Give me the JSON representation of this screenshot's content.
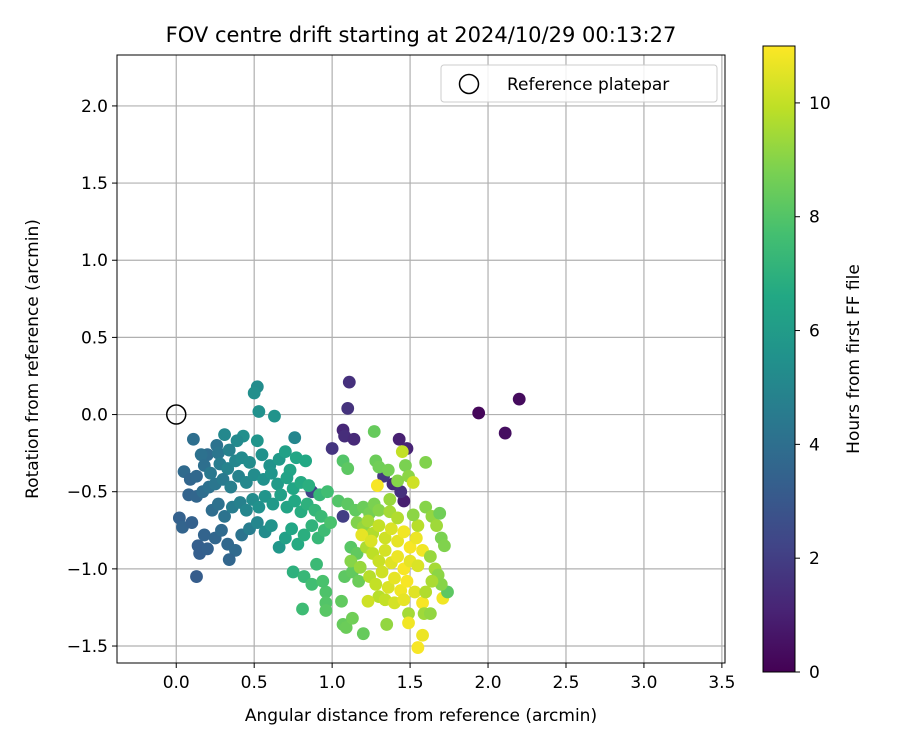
{
  "chart_data": {
    "type": "scatter",
    "title": "FOV centre drift starting at 2024/10/29 00:13:27",
    "xlabel": "Angular distance from reference (arcmin)",
    "ylabel": "Rotation from reference (arcmin)",
    "xlim": [
      -0.38,
      3.52
    ],
    "ylim": [
      -1.61,
      2.33
    ],
    "xticks": [
      "0.0",
      "0.5",
      "1.0",
      "1.5",
      "2.0",
      "2.5",
      "3.0",
      "3.5"
    ],
    "yticks": [
      "−1.5",
      "−1.0",
      "−0.5",
      "0.0",
      "0.5",
      "1.0",
      "1.5",
      "2.0"
    ],
    "grid": true,
    "legend": {
      "placement": "top-right",
      "entries": [
        "Reference platepar"
      ]
    },
    "colorbar": {
      "label": "Hours from first FF file",
      "range": [
        0,
        11
      ],
      "ticks": [
        "0",
        "2",
        "4",
        "6",
        "8",
        "10"
      ],
      "colormap": "viridis"
    },
    "reference": {
      "x": 0.0,
      "y": 0.0,
      "name": "Reference platepar"
    },
    "points": [
      [
        1.94,
        0.01,
        0.2
      ],
      [
        2.2,
        0.1,
        0.3
      ],
      [
        2.11,
        -0.12,
        0.4
      ],
      [
        1.11,
        0.21,
        1.5
      ],
      [
        1.1,
        0.04,
        1.6
      ],
      [
        1.07,
        -0.1,
        1.2
      ],
      [
        1.08,
        -0.14,
        1.4
      ],
      [
        1.14,
        -0.16,
        1.3
      ],
      [
        1.0,
        -0.22,
        1.7
      ],
      [
        1.43,
        -0.16,
        1.0
      ],
      [
        1.48,
        -0.22,
        1.1
      ],
      [
        1.39,
        -0.45,
        1.3
      ],
      [
        1.33,
        -0.4,
        1.8
      ],
      [
        1.46,
        -0.56,
        0.9
      ],
      [
        1.07,
        -0.66,
        2.0
      ],
      [
        1.44,
        -0.5,
        1.5
      ],
      [
        0.87,
        -0.5,
        2.2
      ],
      [
        0.52,
        0.18,
        5.3
      ],
      [
        0.5,
        0.14,
        5.4
      ],
      [
        0.53,
        0.02,
        5.5
      ],
      [
        0.63,
        -0.01,
        5.6
      ],
      [
        0.43,
        -0.14,
        5.4
      ],
      [
        0.39,
        -0.17,
        5.2
      ],
      [
        0.31,
        -0.13,
        5.1
      ],
      [
        0.52,
        -0.17,
        5.7
      ],
      [
        0.76,
        -0.15,
        5.0
      ],
      [
        0.11,
        -0.16,
        4.0
      ],
      [
        0.2,
        -0.26,
        3.9
      ],
      [
        0.16,
        -0.26,
        4.1
      ],
      [
        0.26,
        -0.2,
        4.2
      ],
      [
        0.27,
        -0.25,
        4.3
      ],
      [
        0.34,
        -0.23,
        4.8
      ],
      [
        0.05,
        -0.37,
        3.8
      ],
      [
        0.09,
        -0.42,
        3.6
      ],
      [
        0.13,
        -0.4,
        3.7
      ],
      [
        0.18,
        -0.33,
        4.0
      ],
      [
        0.22,
        -0.38,
        4.4
      ],
      [
        0.28,
        -0.32,
        4.6
      ],
      [
        0.33,
        -0.35,
        4.9
      ],
      [
        0.38,
        -0.3,
        5.0
      ],
      [
        0.42,
        -0.28,
        5.2
      ],
      [
        0.47,
        -0.31,
        5.3
      ],
      [
        0.55,
        -0.26,
        5.5
      ],
      [
        0.6,
        -0.33,
        5.6
      ],
      [
        0.66,
        -0.29,
        5.9
      ],
      [
        0.7,
        -0.24,
        6.2
      ],
      [
        0.73,
        -0.36,
        6.4
      ],
      [
        0.77,
        -0.28,
        6.5
      ],
      [
        0.83,
        -0.3,
        6.6
      ],
      [
        0.08,
        -0.52,
        3.5
      ],
      [
        0.13,
        -0.53,
        3.6
      ],
      [
        0.17,
        -0.5,
        3.9
      ],
      [
        0.21,
        -0.47,
        4.1
      ],
      [
        0.25,
        -0.45,
        4.3
      ],
      [
        0.3,
        -0.42,
        4.5
      ],
      [
        0.35,
        -0.47,
        4.7
      ],
      [
        0.4,
        -0.4,
        4.9
      ],
      [
        0.45,
        -0.44,
        5.1
      ],
      [
        0.5,
        -0.39,
        5.3
      ],
      [
        0.56,
        -0.42,
        5.5
      ],
      [
        0.61,
        -0.38,
        5.7
      ],
      [
        0.65,
        -0.45,
        6.0
      ],
      [
        0.71,
        -0.41,
        6.3
      ],
      [
        0.75,
        -0.48,
        6.5
      ],
      [
        0.8,
        -0.44,
        6.7
      ],
      [
        0.85,
        -0.46,
        6.9
      ],
      [
        0.92,
        -0.52,
        7.3
      ],
      [
        0.97,
        -0.5,
        7.6
      ],
      [
        0.02,
        -0.67,
        3.4
      ],
      [
        0.04,
        -0.73,
        3.5
      ],
      [
        0.1,
        -0.7,
        3.4
      ],
      [
        0.14,
        -0.85,
        3.3
      ],
      [
        0.18,
        -0.78,
        3.5
      ],
      [
        0.23,
        -0.62,
        3.9
      ],
      [
        0.27,
        -0.58,
        4.1
      ],
      [
        0.31,
        -0.66,
        4.2
      ],
      [
        0.36,
        -0.6,
        4.6
      ],
      [
        0.41,
        -0.57,
        4.8
      ],
      [
        0.45,
        -0.62,
        5.0
      ],
      [
        0.49,
        -0.55,
        5.3
      ],
      [
        0.53,
        -0.6,
        5.5
      ],
      [
        0.57,
        -0.53,
        5.7
      ],
      [
        0.62,
        -0.58,
        5.9
      ],
      [
        0.67,
        -0.52,
        6.2
      ],
      [
        0.71,
        -0.6,
        6.4
      ],
      [
        0.76,
        -0.56,
        6.6
      ],
      [
        0.8,
        -0.63,
        6.8
      ],
      [
        0.84,
        -0.58,
        7.0
      ],
      [
        0.89,
        -0.62,
        7.2
      ],
      [
        0.93,
        -0.66,
        7.4
      ],
      [
        0.13,
        -1.05,
        3.2
      ],
      [
        0.15,
        -0.9,
        3.3
      ],
      [
        0.2,
        -0.87,
        3.4
      ],
      [
        0.25,
        -0.8,
        3.6
      ],
      [
        0.29,
        -0.75,
        3.8
      ],
      [
        0.33,
        -0.84,
        3.7
      ],
      [
        0.38,
        -0.88,
        3.8
      ],
      [
        0.34,
        -0.94,
        3.6
      ],
      [
        0.42,
        -0.78,
        4.2
      ],
      [
        0.47,
        -0.74,
        4.6
      ],
      [
        0.52,
        -0.7,
        5.0
      ],
      [
        0.57,
        -0.76,
        5.3
      ],
      [
        0.61,
        -0.72,
        5.6
      ],
      [
        0.66,
        -0.86,
        5.8
      ],
      [
        0.7,
        -0.8,
        6.2
      ],
      [
        0.74,
        -0.74,
        6.5
      ],
      [
        0.78,
        -0.84,
        6.7
      ],
      [
        0.82,
        -0.78,
        6.9
      ],
      [
        0.87,
        -0.72,
        7.1
      ],
      [
        0.91,
        -0.8,
        7.3
      ],
      [
        0.95,
        -0.75,
        7.5
      ],
      [
        0.99,
        -0.7,
        7.8
      ],
      [
        0.75,
        -1.02,
        7.0
      ],
      [
        0.82,
        -1.05,
        7.3
      ],
      [
        0.87,
        -1.1,
        7.6
      ],
      [
        0.9,
        -0.97,
        7.4
      ],
      [
        0.96,
        -1.15,
        7.9
      ],
      [
        0.96,
        -1.22,
        8.0
      ],
      [
        0.96,
        -1.27,
        8.1
      ],
      [
        0.81,
        -1.26,
        7.5
      ],
      [
        0.94,
        -1.08,
        7.8
      ],
      [
        1.06,
        -1.21,
        8.3
      ],
      [
        1.07,
        -1.36,
        8.4
      ],
      [
        1.09,
        -1.38,
        8.5
      ],
      [
        1.13,
        -1.32,
        8.6
      ],
      [
        1.2,
        -1.42,
        8.4
      ],
      [
        1.08,
        -1.05,
        8.2
      ],
      [
        1.13,
        -1.02,
        8.3
      ],
      [
        1.17,
        -1.08,
        8.5
      ],
      [
        1.12,
        -0.86,
        8.1
      ],
      [
        1.16,
        -0.9,
        8.3
      ],
      [
        1.04,
        -0.56,
        8.0
      ],
      [
        1.1,
        -0.58,
        8.2
      ],
      [
        1.15,
        -0.62,
        8.3
      ],
      [
        1.2,
        -0.6,
        8.5
      ],
      [
        1.24,
        -0.64,
        8.7
      ],
      [
        1.27,
        -0.58,
        8.8
      ],
      [
        1.3,
        -0.62,
        9.0
      ],
      [
        1.07,
        -0.3,
        8.0
      ],
      [
        1.1,
        -0.35,
        8.2
      ],
      [
        1.27,
        -0.11,
        8.4
      ],
      [
        1.28,
        -0.3,
        8.5
      ],
      [
        1.3,
        -0.34,
        8.6
      ],
      [
        1.36,
        -0.36,
        8.7
      ],
      [
        1.42,
        -0.43,
        9.0
      ],
      [
        1.47,
        -0.33,
        8.8
      ],
      [
        1.49,
        -0.4,
        9.1
      ],
      [
        1.6,
        -0.31,
        8.9
      ],
      [
        1.45,
        -0.24,
        10.0
      ],
      [
        1.16,
        -0.7,
        8.9
      ],
      [
        1.2,
        -0.73,
        9.2
      ],
      [
        1.23,
        -0.69,
        9.5
      ],
      [
        1.26,
        -0.77,
        9.7
      ],
      [
        1.3,
        -0.72,
        10.0
      ],
      [
        1.34,
        -0.8,
        10.2
      ],
      [
        1.38,
        -0.74,
        10.4
      ],
      [
        1.42,
        -0.82,
        10.6
      ],
      [
        1.46,
        -0.76,
        10.8
      ],
      [
        1.5,
        -0.86,
        10.9
      ],
      [
        1.54,
        -0.8,
        10.7
      ],
      [
        1.58,
        -0.88,
        10.8
      ],
      [
        1.22,
        -0.86,
        9.6
      ],
      [
        1.26,
        -0.9,
        9.9
      ],
      [
        1.3,
        -0.95,
        10.1
      ],
      [
        1.34,
        -0.88,
        10.3
      ],
      [
        1.38,
        -0.96,
        10.5
      ],
      [
        1.42,
        -0.92,
        10.7
      ],
      [
        1.46,
        -1.0,
        10.9
      ],
      [
        1.5,
        -0.95,
        10.6
      ],
      [
        1.55,
        -0.98,
        10.4
      ],
      [
        1.24,
        -1.05,
        9.8
      ],
      [
        1.28,
        -1.1,
        10.0
      ],
      [
        1.32,
        -1.02,
        10.2
      ],
      [
        1.36,
        -1.12,
        10.4
      ],
      [
        1.4,
        -1.06,
        10.6
      ],
      [
        1.44,
        -1.14,
        10.8
      ],
      [
        1.48,
        -1.08,
        10.9
      ],
      [
        1.53,
        -1.15,
        10.5
      ],
      [
        1.3,
        -1.18,
        9.8
      ],
      [
        1.34,
        -1.2,
        10.0
      ],
      [
        1.4,
        -1.22,
        10.3
      ],
      [
        1.46,
        -1.2,
        10.6
      ],
      [
        1.58,
        -1.22,
        10.9
      ],
      [
        1.23,
        -1.21,
        10.2
      ],
      [
        1.49,
        -1.29,
        9.5
      ],
      [
        1.49,
        -1.35,
        10.8
      ],
      [
        1.55,
        -1.51,
        10.9
      ],
      [
        1.58,
        -1.43,
        10.7
      ],
      [
        1.59,
        -1.29,
        9.4
      ],
      [
        1.63,
        -1.29,
        9.2
      ],
      [
        1.71,
        -1.19,
        10.8
      ],
      [
        1.74,
        -1.15,
        8.2
      ],
      [
        1.6,
        -0.6,
        9.0
      ],
      [
        1.64,
        -0.66,
        9.2
      ],
      [
        1.67,
        -0.72,
        9.4
      ],
      [
        1.69,
        -0.64,
        8.6
      ],
      [
        1.7,
        -0.8,
        8.8
      ],
      [
        1.72,
        -0.85,
        8.9
      ],
      [
        1.63,
        -0.92,
        9.3
      ],
      [
        1.66,
        -1.0,
        9.5
      ],
      [
        1.68,
        -1.04,
        9.1
      ],
      [
        1.7,
        -1.1,
        9.0
      ],
      [
        1.64,
        -1.08,
        9.6
      ],
      [
        1.6,
        -1.15,
        9.7
      ],
      [
        1.55,
        -0.72,
        9.8
      ],
      [
        1.35,
        -1.36,
        9.2
      ],
      [
        1.37,
        -0.55,
        9.3
      ],
      [
        1.29,
        -0.46,
        10.9
      ],
      [
        1.52,
        -0.44,
        10.2
      ],
      [
        1.37,
        -0.63,
        9.5
      ],
      [
        1.42,
        -0.67,
        9.7
      ],
      [
        1.19,
        -0.78,
        10.6
      ],
      [
        1.25,
        -0.82,
        10.4
      ],
      [
        1.12,
        -0.95,
        9.0
      ],
      [
        1.18,
        -0.99,
        9.3
      ],
      [
        1.52,
        -0.65,
        9.1
      ]
    ]
  }
}
